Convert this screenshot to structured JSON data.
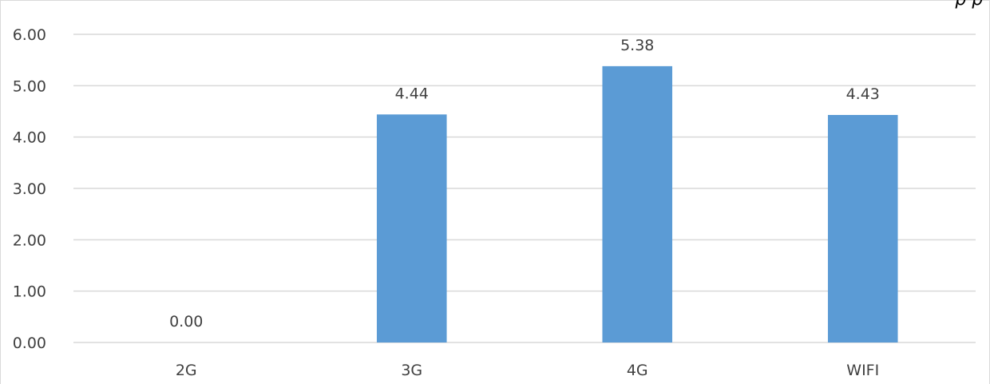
{
  "corner_text": "ρ ρ",
  "colors": {
    "bar": "#5b9bd5",
    "grid": "#d9d9d9",
    "text": "#404040"
  },
  "chart_data": {
    "type": "bar",
    "title": "",
    "xlabel": "",
    "ylabel": "",
    "categories": [
      "2G",
      "3G",
      "4G",
      "WIFI"
    ],
    "values": [
      0.0,
      4.44,
      5.38,
      4.43
    ],
    "data_labels": [
      "0.00",
      "4.44",
      "5.38",
      "4.43"
    ],
    "ylim": [
      0,
      6
    ],
    "yticks": [
      0,
      1,
      2,
      3,
      4,
      5,
      6
    ],
    "ytick_labels": [
      "0.00",
      "1.00",
      "2.00",
      "3.00",
      "4.00",
      "5.00",
      "6.00"
    ],
    "grid": true,
    "legend": "none"
  }
}
